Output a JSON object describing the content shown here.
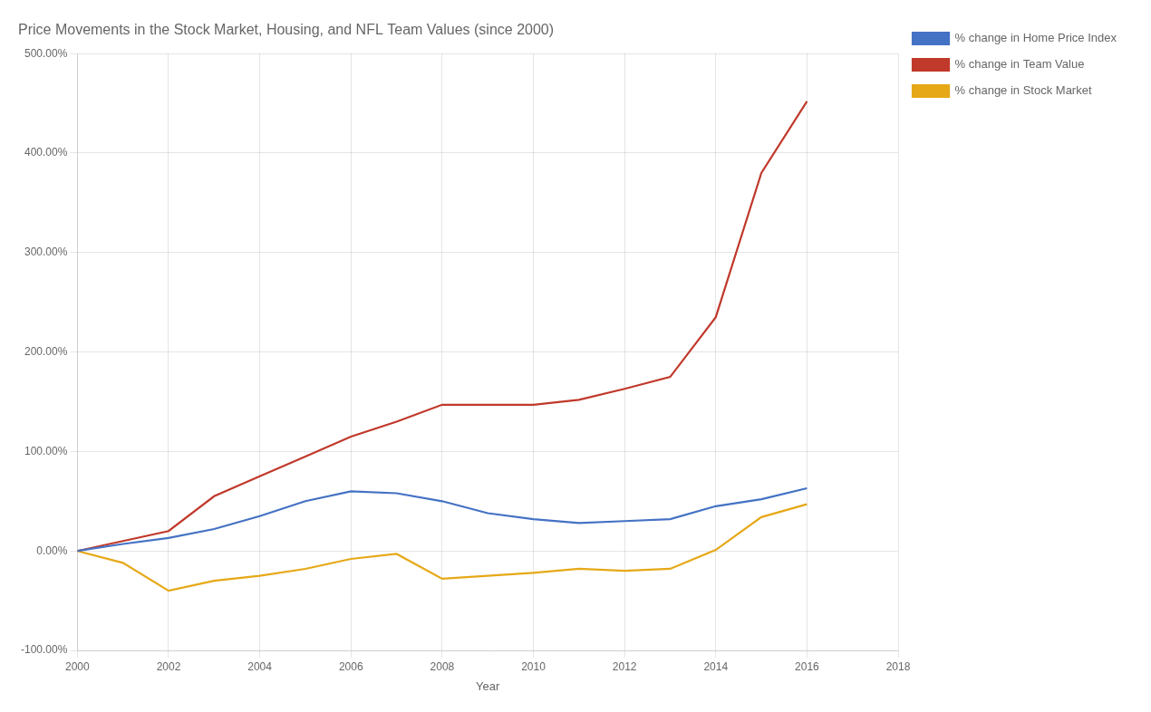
{
  "chart_data": {
    "type": "line",
    "title": "Price Movements in the Stock Market, Housing, and NFL Team Values (since 2000)",
    "xlabel": "Year",
    "x": [
      2000,
      2001,
      2002,
      2003,
      2004,
      2005,
      2006,
      2007,
      2008,
      2009,
      2010,
      2011,
      2012,
      2013,
      2014,
      2015,
      2016
    ],
    "series": [
      {
        "name": "% change in Home Price Index",
        "color": "#4472c4",
        "values": [
          0.0,
          7.0,
          13.0,
          22.0,
          35.0,
          50.0,
          60.0,
          58.0,
          50.0,
          38.0,
          32.0,
          28.0,
          30.0,
          32.0,
          45.0,
          52.0,
          63.0
        ]
      },
      {
        "name": "% change in Team Value",
        "color": "#c0392b",
        "values": [
          0.0,
          10.0,
          20.0,
          55.0,
          75.0,
          95.0,
          115.0,
          130.0,
          147.0,
          147.0,
          147.0,
          152.0,
          163.0,
          175.0,
          235.0,
          380.0,
          452.0
        ]
      },
      {
        "name": "% change in Stock Market",
        "color": "#e6a817",
        "values": [
          0.0,
          -12.0,
          -40.0,
          -30.0,
          -25.0,
          -18.0,
          -8.0,
          -3.0,
          -28.0,
          -25.0,
          -22.0,
          -18.0,
          -20.0,
          -18.0,
          1.0,
          34.0,
          47.0
        ]
      }
    ],
    "xlim": [
      2000,
      2018
    ],
    "xticks": [
      2000,
      2002,
      2004,
      2006,
      2008,
      2010,
      2012,
      2014,
      2016,
      2018
    ],
    "ylim": [
      -100,
      500
    ],
    "yticks": [
      {
        "value": -100,
        "label": "-100.00%"
      },
      {
        "value": 0,
        "label": "0.00%"
      },
      {
        "value": 100,
        "label": "100.00%"
      },
      {
        "value": 200,
        "label": "200.00%"
      },
      {
        "value": 300,
        "label": "300.00%"
      },
      {
        "value": 400,
        "label": "400.00%"
      },
      {
        "value": 500,
        "label": "500.00%"
      }
    ],
    "grid": true,
    "legend": "right"
  }
}
